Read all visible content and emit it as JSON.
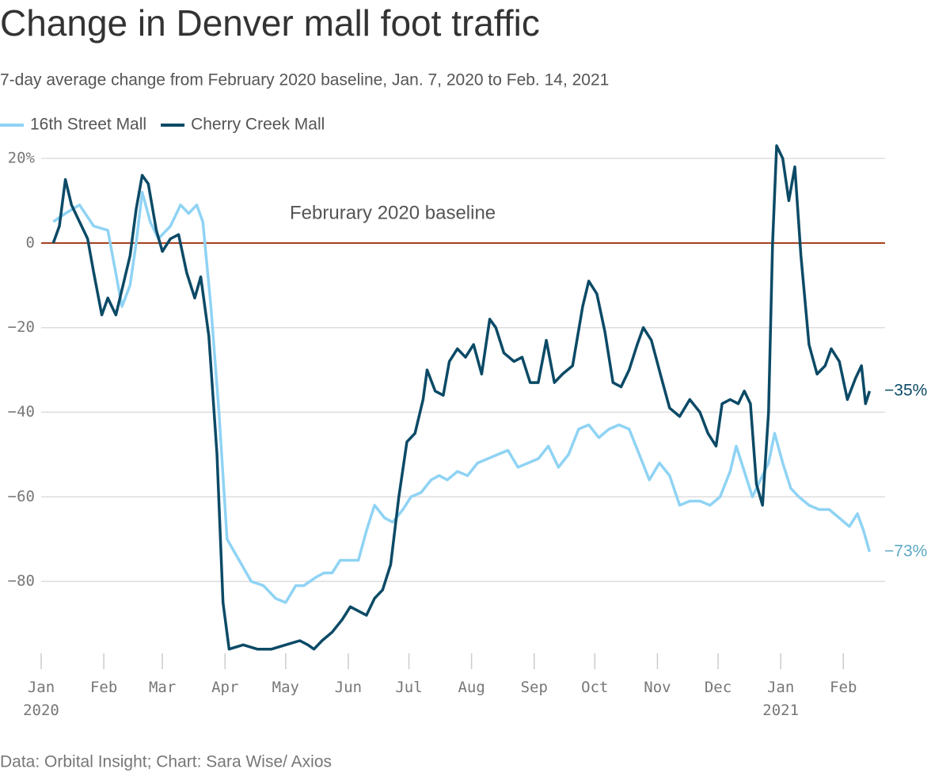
{
  "chart_data": {
    "type": "line",
    "title": "Change in Denver mall foot traffic",
    "subtitle": "7-day average change from February 2020 baseline, Jan. 7, 2020 to Feb. 14, 2021",
    "source": "Data: Orbital Insight; Chart: Sara Wise/ Axios",
    "baseline": {
      "value": 0,
      "label": "Februrary 2020 baseline",
      "color": "#a33a16"
    },
    "xlim": [
      "2020-01-01",
      "2021-02-15"
    ],
    "xticks": [
      {
        "value": "2020-01-01",
        "label": "Jan\n2020"
      },
      {
        "value": "2020-02-01",
        "label": "Feb"
      },
      {
        "value": "2020-03-01",
        "label": "Mar"
      },
      {
        "value": "2020-04-01",
        "label": "Apr"
      },
      {
        "value": "2020-05-01",
        "label": "May"
      },
      {
        "value": "2020-06-01",
        "label": "Jun"
      },
      {
        "value": "2020-07-01",
        "label": "Jul"
      },
      {
        "value": "2020-08-01",
        "label": "Aug"
      },
      {
        "value": "2020-09-01",
        "label": "Sep"
      },
      {
        "value": "2020-10-01",
        "label": "Oct"
      },
      {
        "value": "2020-11-01",
        "label": "Nov"
      },
      {
        "value": "2020-12-01",
        "label": "Dec"
      },
      {
        "value": "2021-01-01",
        "label": "Jan\n2021"
      },
      {
        "value": "2021-02-01",
        "label": "Feb"
      }
    ],
    "ylim": [
      -97,
      23
    ],
    "yticks": [
      {
        "value": 20,
        "label": "20%"
      },
      0,
      {
        "value": -20,
        "label": "−20"
      },
      {
        "value": -40,
        "label": "−40"
      },
      {
        "value": -60,
        "label": "−60"
      },
      {
        "value": -80,
        "label": "−80"
      }
    ],
    "grid": true,
    "series": [
      {
        "name": "16th Street Mall",
        "color": "#8fd3f4",
        "label_color": "#5fa9c4",
        "x": [
          "2020-01-07",
          "2020-01-13",
          "2020-01-20",
          "2020-01-27",
          "2020-02-03",
          "2020-02-10",
          "2020-02-14",
          "2020-02-17",
          "2020-02-20",
          "2020-02-24",
          "2020-02-28",
          "2020-03-05",
          "2020-03-10",
          "2020-03-14",
          "2020-03-18",
          "2020-03-21",
          "2020-03-25",
          "2020-03-29",
          "2020-04-02",
          "2020-04-08",
          "2020-04-14",
          "2020-04-20",
          "2020-04-26",
          "2020-05-01",
          "2020-05-06",
          "2020-05-10",
          "2020-05-16",
          "2020-05-20",
          "2020-05-24",
          "2020-05-28",
          "2020-06-02",
          "2020-06-06",
          "2020-06-10",
          "2020-06-14",
          "2020-06-19",
          "2020-06-23",
          "2020-06-28",
          "2020-07-02",
          "2020-07-07",
          "2020-07-12",
          "2020-07-16",
          "2020-07-20",
          "2020-07-25",
          "2020-07-30",
          "2020-08-04",
          "2020-08-09",
          "2020-08-14",
          "2020-08-19",
          "2020-08-24",
          "2020-08-29",
          "2020-09-03",
          "2020-09-08",
          "2020-09-13",
          "2020-09-18",
          "2020-09-23",
          "2020-09-28",
          "2020-10-03",
          "2020-10-08",
          "2020-10-13",
          "2020-10-18",
          "2020-10-23",
          "2020-10-28",
          "2020-11-02",
          "2020-11-07",
          "2020-11-12",
          "2020-11-17",
          "2020-11-22",
          "2020-11-27",
          "2020-12-02",
          "2020-12-07",
          "2020-12-10",
          "2020-12-14",
          "2020-12-18",
          "2020-12-22",
          "2020-12-26",
          "2020-12-29",
          "2021-01-02",
          "2021-01-06",
          "2021-01-10",
          "2021-01-15",
          "2021-01-20",
          "2021-01-25",
          "2021-01-30",
          "2021-02-04",
          "2021-02-08",
          "2021-02-11",
          "2021-02-14"
        ],
        "values": [
          5,
          7,
          9,
          4,
          3,
          -15,
          -10,
          0,
          12,
          5,
          1,
          4,
          9,
          7,
          9,
          5,
          -15,
          -40,
          -70,
          -75,
          -80,
          -81,
          -84,
          -85,
          -81,
          -81,
          -79,
          -78,
          -78,
          -75,
          -75,
          -75,
          -68,
          -62,
          -65,
          -66,
          -63,
          -60,
          -59,
          -56,
          -55,
          -56,
          -54,
          -55,
          -52,
          -51,
          -50,
          -49,
          -53,
          -52,
          -51,
          -48,
          -53,
          -50,
          -44,
          -43,
          -46,
          -44,
          -43,
          -44,
          -50,
          -56,
          -52,
          -55,
          -62,
          -61,
          -61,
          -62,
          -60,
          -54,
          -48,
          -54,
          -60,
          -56,
          -52,
          -45,
          -52,
          -58,
          -60,
          -62,
          -63,
          -63,
          -65,
          -67,
          -64,
          -68,
          -73
        ],
        "value_labels": [
          null,
          null,
          null,
          null,
          null,
          null,
          null,
          null,
          null,
          null,
          null,
          null,
          null,
          null,
          null,
          null,
          null,
          null,
          null,
          null,
          null,
          null,
          null,
          null,
          null,
          null,
          null,
          null,
          null,
          null,
          null,
          null,
          null,
          null,
          null,
          null,
          null,
          null,
          null,
          null,
          null,
          null,
          null,
          null,
          null,
          null,
          null,
          null,
          null,
          null,
          null,
          null,
          null,
          null,
          null,
          null,
          null,
          null,
          null,
          null,
          null,
          null,
          null,
          null,
          null,
          null,
          null,
          null,
          null,
          null,
          null,
          null,
          null,
          null,
          null,
          null,
          null,
          null,
          null,
          null,
          null,
          null,
          null,
          null,
          null,
          null,
          "−73%"
        ]
      },
      {
        "name": "Cherry Creek Mall",
        "color": "#0b4a66",
        "label_color": "#0b4a66",
        "x": [
          "2020-01-07",
          "2020-01-10",
          "2020-01-13",
          "2020-01-16",
          "2020-01-20",
          "2020-01-24",
          "2020-01-27",
          "2020-01-31",
          "2020-02-03",
          "2020-02-07",
          "2020-02-10",
          "2020-02-14",
          "2020-02-17",
          "2020-02-20",
          "2020-02-23",
          "2020-02-27",
          "2020-03-01",
          "2020-03-05",
          "2020-03-09",
          "2020-03-13",
          "2020-03-17",
          "2020-03-20",
          "2020-03-24",
          "2020-03-28",
          "2020-03-31",
          "2020-04-03",
          "2020-04-10",
          "2020-04-17",
          "2020-04-24",
          "2020-05-01",
          "2020-05-08",
          "2020-05-12",
          "2020-05-15",
          "2020-05-19",
          "2020-05-24",
          "2020-05-29",
          "2020-06-02",
          "2020-06-06",
          "2020-06-10",
          "2020-06-14",
          "2020-06-18",
          "2020-06-22",
          "2020-06-26",
          "2020-06-30",
          "2020-07-04",
          "2020-07-08",
          "2020-07-10",
          "2020-07-14",
          "2020-07-18",
          "2020-07-21",
          "2020-07-25",
          "2020-07-29",
          "2020-08-02",
          "2020-08-06",
          "2020-08-10",
          "2020-08-13",
          "2020-08-17",
          "2020-08-22",
          "2020-08-26",
          "2020-08-30",
          "2020-09-03",
          "2020-09-07",
          "2020-09-11",
          "2020-09-15",
          "2020-09-20",
          "2020-09-25",
          "2020-09-28",
          "2020-10-02",
          "2020-10-06",
          "2020-10-10",
          "2020-10-14",
          "2020-10-18",
          "2020-10-22",
          "2020-10-25",
          "2020-10-29",
          "2020-11-03",
          "2020-11-07",
          "2020-11-12",
          "2020-11-17",
          "2020-11-22",
          "2020-11-26",
          "2020-11-30",
          "2020-12-03",
          "2020-12-07",
          "2020-12-11",
          "2020-12-14",
          "2020-12-17",
          "2020-12-20",
          "2020-12-23",
          "2020-12-26",
          "2020-12-28",
          "2020-12-30",
          "2021-01-02",
          "2021-01-05",
          "2021-01-08",
          "2021-01-11",
          "2021-01-15",
          "2021-01-19",
          "2021-01-23",
          "2021-01-26",
          "2021-01-30",
          "2021-02-03",
          "2021-02-07",
          "2021-02-10",
          "2021-02-12",
          "2021-02-14"
        ],
        "values": [
          0,
          4,
          15,
          9,
          5,
          1,
          -7,
          -17,
          -13,
          -17,
          -11,
          -3,
          8,
          16,
          14,
          3,
          -2,
          1,
          2,
          -7,
          -13,
          -8,
          -22,
          -50,
          -85,
          -96,
          -95,
          -96,
          -96,
          -95,
          -94,
          -95,
          -96,
          -94,
          -92,
          -89,
          -86,
          -87,
          -88,
          -84,
          -82,
          -76,
          -60,
          -47,
          -45,
          -37,
          -30,
          -35,
          -36,
          -28,
          -25,
          -27,
          -24,
          -31,
          -18,
          -20,
          -26,
          -28,
          -27,
          -33,
          -33,
          -23,
          -33,
          -31,
          -29,
          -15,
          -9,
          -12,
          -21,
          -33,
          -34,
          -30,
          -24,
          -20,
          -23,
          -32,
          -39,
          -41,
          -37,
          -40,
          -45,
          -48,
          -38,
          -37,
          -38,
          -35,
          -38,
          -57,
          -62,
          -40,
          0,
          23,
          20,
          10,
          18,
          -3,
          -24,
          -31,
          -29,
          -25,
          -28,
          -37,
          -32,
          -29,
          -38,
          -35
        ],
        "value_labels": [
          null,
          null,
          null,
          null,
          null,
          null,
          null,
          null,
          null,
          null,
          null,
          null,
          null,
          null,
          null,
          null,
          null,
          null,
          null,
          null,
          null,
          null,
          null,
          null,
          null,
          null,
          null,
          null,
          null,
          null,
          null,
          null,
          null,
          null,
          null,
          null,
          null,
          null,
          null,
          null,
          null,
          null,
          null,
          null,
          null,
          null,
          null,
          null,
          null,
          null,
          null,
          null,
          null,
          null,
          null,
          null,
          null,
          null,
          null,
          null,
          null,
          null,
          null,
          null,
          null,
          null,
          null,
          null,
          null,
          null,
          null,
          null,
          null,
          null,
          null,
          null,
          null,
          null,
          null,
          null,
          null,
          null,
          null,
          null,
          null,
          null,
          null,
          null,
          null,
          null,
          null,
          null,
          null,
          null,
          null,
          null,
          null,
          null,
          null,
          null,
          null,
          null,
          null,
          null,
          null,
          "−35%"
        ]
      }
    ]
  }
}
